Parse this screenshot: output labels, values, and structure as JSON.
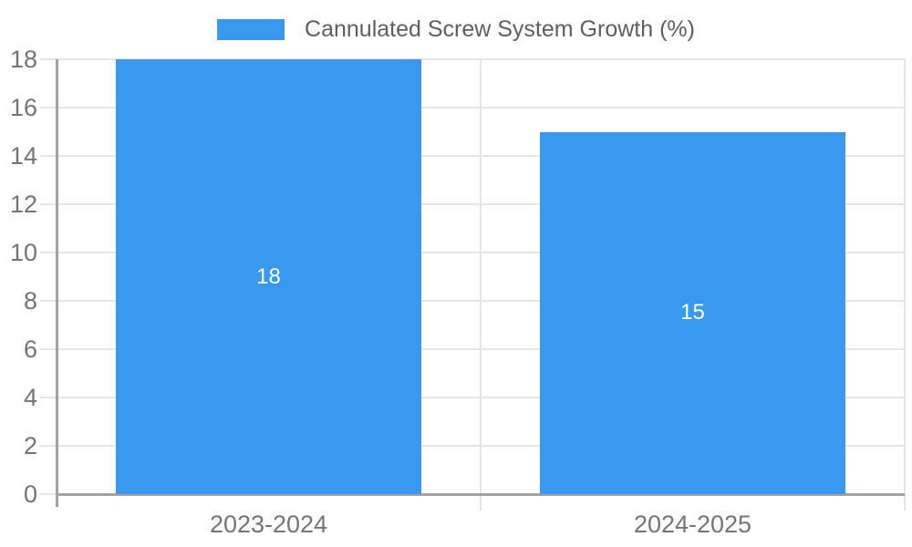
{
  "chart_data": {
    "type": "bar",
    "title": "Cannulated Screw System Growth (%)",
    "legend_position": "top",
    "categories": [
      "2023-2024",
      "2024-2025"
    ],
    "series": [
      {
        "name": "Cannulated Screw System Growth (%)",
        "values": [
          18,
          15
        ]
      }
    ],
    "value_labels": [
      "18",
      "15"
    ],
    "ylim": [
      0,
      18
    ],
    "ytick_step": 2,
    "ytick_labels": [
      "0",
      "2",
      "4",
      "6",
      "8",
      "10",
      "12",
      "14",
      "16",
      "18"
    ],
    "xlabel": "",
    "ylabel": "",
    "grid": true,
    "colors": {
      "bar": "#3899ee",
      "gridline": "#e6e6e6",
      "axis_line": "#a2a2a2",
      "tick_label": "#757575",
      "legend_text": "#5f5f5f",
      "value_label": "#ffffff",
      "background": "#ffffff"
    }
  }
}
